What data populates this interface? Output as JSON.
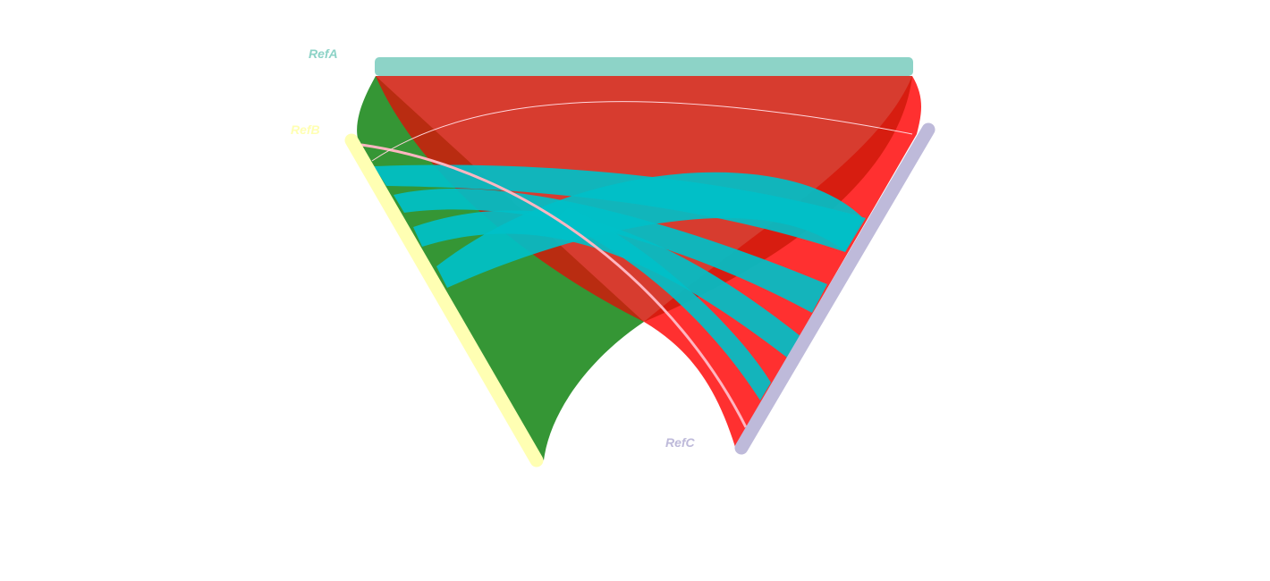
{
  "genomes": [
    {
      "id": "refA",
      "label": "RefA",
      "color": "#8dd3c7"
    },
    {
      "id": "refB",
      "label": "RefB",
      "color": "#ffffb3"
    },
    {
      "id": "refC",
      "label": "RefC",
      "color": "#bebada"
    }
  ],
  "links": [
    {
      "id": "link-a-b",
      "kind": "syntenic-block",
      "color": "#1f8b1f",
      "opacity": 0.9
    },
    {
      "id": "link-a-c",
      "kind": "syntenic-block",
      "color": "#ff1a1a",
      "opacity": 0.9
    },
    {
      "id": "link-a-c-inner",
      "kind": "syntenic-block",
      "color": "#d01a0a",
      "opacity": 0.85
    },
    {
      "id": "link-b-c-1",
      "kind": "syntenic-block",
      "color": "#00c0c8",
      "opacity": 0.92
    },
    {
      "id": "link-b-c-2",
      "kind": "syntenic-block",
      "color": "#00c0c8",
      "opacity": 0.92
    },
    {
      "id": "link-b-c-3",
      "kind": "syntenic-block",
      "color": "#00c0c8",
      "opacity": 0.92
    },
    {
      "id": "link-b-c-4",
      "kind": "syntenic-block",
      "color": "#00c0c8",
      "opacity": 0.92
    },
    {
      "id": "link-b-c-thin",
      "kind": "thin-link",
      "color": "#ffb6c1",
      "opacity": 1
    },
    {
      "id": "link-a-c-thin",
      "kind": "thin-link",
      "color": "#ffd6dc",
      "opacity": 1
    }
  ]
}
